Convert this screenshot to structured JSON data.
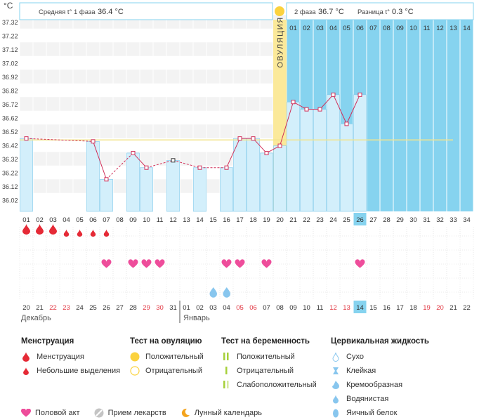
{
  "header": {
    "unit": "°C",
    "phase1_label": "Средняя t° 1 фаза",
    "phase1_value": "36.4 °C",
    "phase2_label": "2 фаза",
    "phase2_value": "36.7 °C",
    "diff_label": "Разница t°",
    "diff_value": "0.3 °C"
  },
  "ovulation_label": "ОВУЛЯЦИЯ",
  "colors": {
    "phase2_bg": "#86d3ef",
    "bar_fill": "#d3effb",
    "bar_stroke": "#7ec8ec",
    "line": "#d0305a",
    "ovulation": "#fbe99a",
    "heart": "#ee4d9b",
    "blood": "#e52a36",
    "drop_blue": "#88c6ee",
    "cover_line": "#f2e48c"
  },
  "chart_data": {
    "type": "bar",
    "y_ticks": [
      "37.32",
      "37.22",
      "37.12",
      "37.02",
      "36.92",
      "36.82",
      "36.72",
      "36.62",
      "36.52",
      "36.42",
      "36.32",
      "36.22",
      "36.12",
      "36.02"
    ],
    "ylim": [
      36.02,
      37.32
    ],
    "cycle_days": [
      "01",
      "02",
      "03",
      "04",
      "05",
      "06",
      "07",
      "08",
      "09",
      "10",
      "11",
      "12",
      "13",
      "14",
      "15",
      "16",
      "17",
      "18",
      "19",
      "20",
      "21",
      "22",
      "23",
      "24",
      "25",
      "26",
      "27",
      "28",
      "29",
      "30",
      "31",
      "32",
      "33",
      "34"
    ],
    "temperatures": [
      36.52,
      null,
      null,
      null,
      null,
      36.5,
      36.24,
      null,
      36.42,
      36.32,
      null,
      36.37,
      null,
      36.32,
      null,
      36.32,
      36.52,
      36.52,
      36.42,
      36.47,
      36.77,
      36.72,
      36.72,
      36.82,
      36.62,
      36.82,
      null,
      null,
      null,
      null,
      null,
      null,
      null,
      null
    ],
    "dashed_segments": [
      [
        0,
        5
      ],
      [
        6,
        8
      ]
    ],
    "cover_line": 36.51,
    "ovulation_day_index": 19,
    "phase2_days": [
      "01",
      "02",
      "03",
      "04",
      "05",
      "06",
      "07",
      "08",
      "09",
      "10",
      "11",
      "12",
      "13",
      "14"
    ],
    "phase2_start_index": 20,
    "current_day_index": 25,
    "menstruation": [
      "large",
      "large",
      "large",
      "small",
      "small",
      "small",
      "small"
    ],
    "intercourse_days": [
      7,
      9,
      10,
      11,
      16,
      17,
      19,
      26
    ],
    "cervical_days": [
      15,
      16
    ],
    "dates": [
      "20",
      "21",
      "22",
      "23",
      "24",
      "25",
      "26",
      "27",
      "28",
      "29",
      "30",
      "31",
      "01",
      "02",
      "03",
      "04",
      "05",
      "06",
      "07",
      "08",
      "09",
      "10",
      "11",
      "12",
      "13",
      "14",
      "15",
      "16",
      "17",
      "18",
      "19",
      "20",
      "21",
      "22"
    ],
    "red_date_indices": [
      2,
      3,
      9,
      10,
      16,
      17,
      23,
      24,
      30,
      31
    ],
    "current_date_index": 25,
    "month_dec": "Декабрь",
    "month_jan": "Январь",
    "jan_start_index": 12
  },
  "legend": {
    "menstruation": {
      "title": "Менструация",
      "items": [
        "Менструация",
        "Небольшие выделения"
      ]
    },
    "ovulation_test": {
      "title": "Тест на овуляцию",
      "items": [
        "Положительный",
        "Отрицательный"
      ]
    },
    "pregnancy_test": {
      "title": "Тест на беременность",
      "items": [
        "Положительный",
        "Отрицательный",
        "Слабоположительный"
      ]
    },
    "cervical": {
      "title": "Цервикальная жидкость",
      "items": [
        "Сухо",
        "Клейкая",
        "Кремообразная",
        "Водянистая",
        "Яичный белок"
      ]
    },
    "bottom": [
      "Половой акт",
      "Прием лекарств",
      "Лунный календарь"
    ]
  }
}
